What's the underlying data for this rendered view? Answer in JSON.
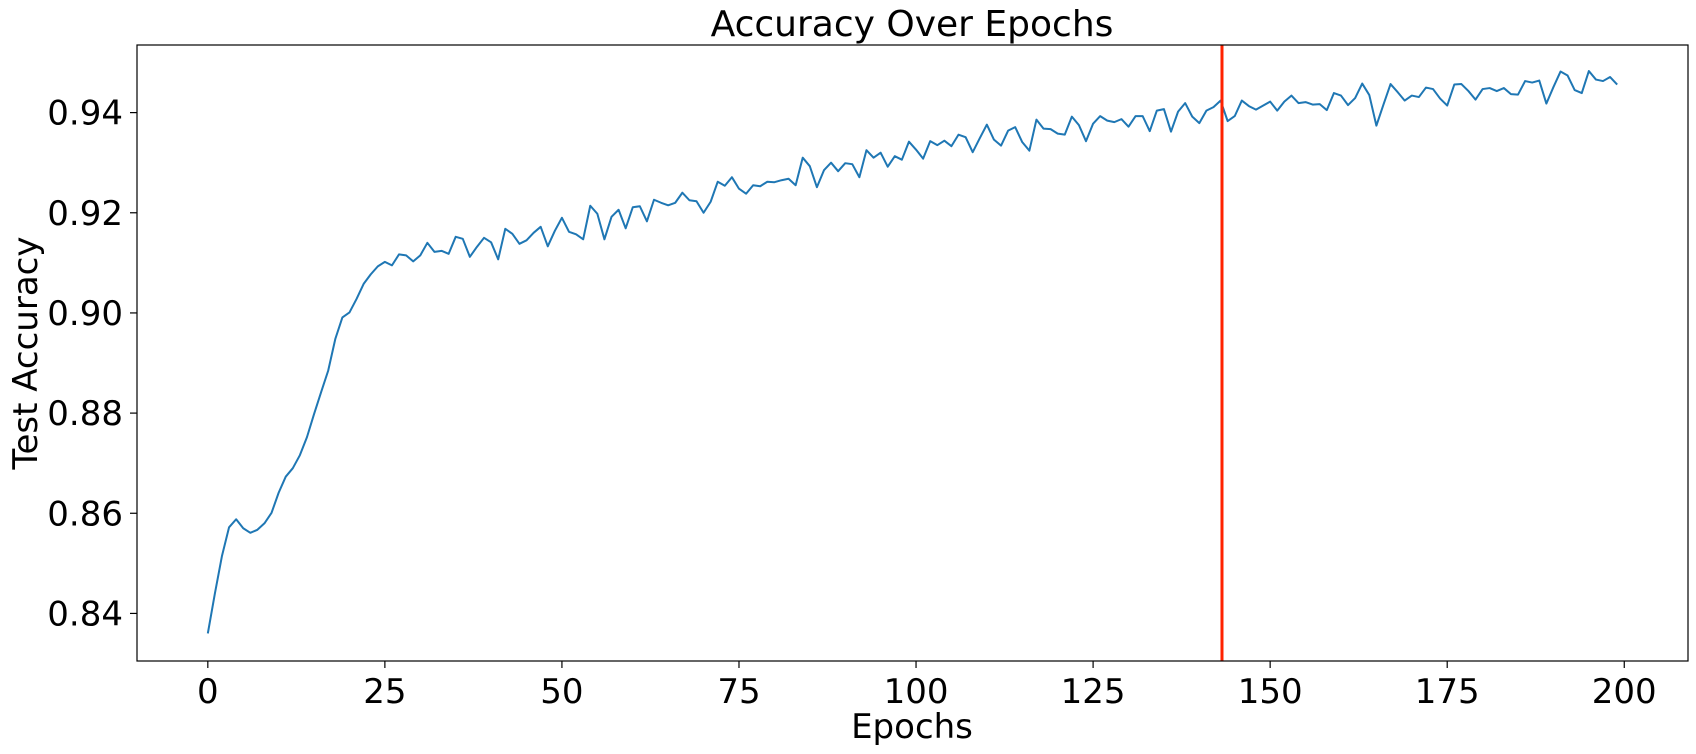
{
  "chart_data": {
    "type": "line",
    "title": "Accuracy Over Epochs",
    "xlabel": "Epochs",
    "ylabel": "Test Accuracy",
    "xlim": [
      -10,
      209
    ],
    "ylim": [
      0.8305,
      0.9535
    ],
    "xticks": [
      0,
      25,
      50,
      75,
      100,
      125,
      150,
      175,
      200
    ],
    "xtick_labels": [
      "0",
      "25",
      "50",
      "75",
      "100",
      "125",
      "150",
      "175",
      "200"
    ],
    "yticks": [
      0.84,
      0.86,
      0.88,
      0.9,
      0.92,
      0.94
    ],
    "ytick_labels": [
      "0.84",
      "0.86",
      "0.88",
      "0.90",
      "0.92",
      "0.94"
    ],
    "grid": false,
    "series": [
      {
        "color": "#1f77b4",
        "x": [
          0,
          1,
          2,
          3,
          4,
          5,
          6,
          7,
          8,
          9,
          10,
          11,
          12,
          13,
          14,
          15,
          16,
          17,
          18,
          19,
          20,
          21,
          22,
          23,
          24,
          25,
          26,
          27,
          28,
          29,
          30,
          31,
          32,
          33,
          34,
          35,
          36,
          37,
          38,
          39,
          40,
          41,
          42,
          43,
          44,
          45,
          46,
          47,
          48,
          49,
          50,
          51,
          52,
          53,
          54,
          55,
          56,
          57,
          58,
          59,
          60,
          61,
          62,
          63,
          64,
          65,
          66,
          67,
          68,
          69,
          70,
          71,
          72,
          73,
          74,
          75,
          76,
          77,
          78,
          79,
          80,
          81,
          82,
          83,
          84,
          85,
          86,
          87,
          88,
          89,
          90,
          91,
          92,
          93,
          94,
          95,
          96,
          97,
          98,
          99,
          100,
          101,
          102,
          103,
          104,
          105,
          106,
          107,
          108,
          109,
          110,
          111,
          112,
          113,
          114,
          115,
          116,
          117,
          118,
          119,
          120,
          121,
          122,
          123,
          124,
          125,
          126,
          127,
          128,
          129,
          130,
          131,
          132,
          133,
          134,
          135,
          136,
          137,
          138,
          139,
          140,
          141,
          142,
          143,
          144,
          145,
          146,
          147,
          148,
          149,
          150,
          151,
          152,
          153,
          154,
          155,
          156,
          157,
          158,
          159,
          160,
          161,
          162,
          163,
          164,
          165,
          166,
          167,
          168,
          169,
          170,
          171,
          172,
          173,
          174,
          175,
          176,
          177,
          178,
          179,
          180,
          181,
          182,
          183,
          184,
          185,
          186,
          187,
          188,
          189,
          190,
          191,
          192,
          193,
          194,
          195,
          196,
          197,
          198,
          199
        ],
        "y": [
          0.836,
          0.844,
          0.8515,
          0.8572,
          0.8588,
          0.857,
          0.8561,
          0.8567,
          0.858,
          0.8601,
          0.8641,
          0.8673,
          0.869,
          0.8716,
          0.8752,
          0.8798,
          0.8842,
          0.8885,
          0.8948,
          0.8991,
          0.9001,
          0.9028,
          0.9058,
          0.9077,
          0.9093,
          0.9102,
          0.9095,
          0.9117,
          0.9115,
          0.9103,
          0.9115,
          0.914,
          0.9122,
          0.9124,
          0.9118,
          0.9152,
          0.9148,
          0.9112,
          0.9132,
          0.915,
          0.9141,
          0.9107,
          0.9168,
          0.9158,
          0.9138,
          0.9145,
          0.916,
          0.9172,
          0.9133,
          0.9164,
          0.919,
          0.9162,
          0.9157,
          0.9147,
          0.9214,
          0.9198,
          0.9147,
          0.9192,
          0.9206,
          0.9169,
          0.9211,
          0.9213,
          0.9183,
          0.9226,
          0.922,
          0.9215,
          0.922,
          0.924,
          0.9225,
          0.9223,
          0.92,
          0.9222,
          0.9262,
          0.9254,
          0.9271,
          0.9248,
          0.9238,
          0.9255,
          0.9253,
          0.9262,
          0.9261,
          0.9265,
          0.9268,
          0.9255,
          0.931,
          0.9293,
          0.9251,
          0.9285,
          0.93,
          0.9283,
          0.9299,
          0.9297,
          0.9271,
          0.9325,
          0.931,
          0.932,
          0.9292,
          0.9313,
          0.9306,
          0.9342,
          0.9326,
          0.9308,
          0.9343,
          0.9335,
          0.9344,
          0.9333,
          0.9356,
          0.9351,
          0.9321,
          0.9349,
          0.9376,
          0.9346,
          0.9334,
          0.9364,
          0.9371,
          0.9341,
          0.9324,
          0.9386,
          0.9368,
          0.9367,
          0.9358,
          0.9356,
          0.9392,
          0.9375,
          0.9343,
          0.9378,
          0.9393,
          0.9384,
          0.9381,
          0.9387,
          0.9372,
          0.9393,
          0.9393,
          0.9363,
          0.9404,
          0.9407,
          0.9362,
          0.9402,
          0.9419,
          0.9392,
          0.9379,
          0.9404,
          0.9411,
          0.9424,
          0.9383,
          0.9393,
          0.9424,
          0.9413,
          0.9406,
          0.9414,
          0.9422,
          0.9404,
          0.9422,
          0.9434,
          0.9419,
          0.9421,
          0.9416,
          0.9417,
          0.9405,
          0.9439,
          0.9434,
          0.9415,
          0.9429,
          0.9458,
          0.9435,
          0.9374,
          0.9416,
          0.9457,
          0.9441,
          0.9424,
          0.9434,
          0.9431,
          0.945,
          0.9447,
          0.9428,
          0.9414,
          0.9456,
          0.9457,
          0.9443,
          0.9426,
          0.9447,
          0.9449,
          0.9443,
          0.9449,
          0.9437,
          0.9436,
          0.9463,
          0.946,
          0.9464,
          0.9418,
          0.9451,
          0.9482,
          0.9474,
          0.9445,
          0.9439,
          0.9483,
          0.9466,
          0.9463,
          0.9471,
          0.9456
        ]
      }
    ],
    "vline": {
      "x": 143.2,
      "color": "#ff2200"
    }
  }
}
